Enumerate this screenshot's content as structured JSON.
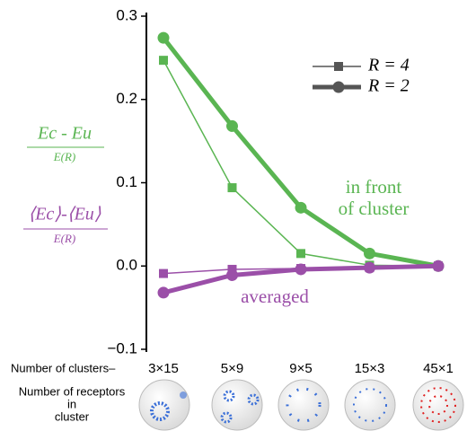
{
  "chart_data": {
    "type": "line",
    "categories": [
      "3×15",
      "5×9",
      "9×5",
      "15×3",
      "45×1"
    ],
    "ylim": [
      -0.1,
      0.3
    ],
    "yticks": [
      {
        "value": -0.1,
        "label": "−0.1"
      },
      {
        "value": 0,
        "label": "0.0"
      },
      0.1,
      0.2,
      0.3
    ],
    "series": [
      {
        "color": "#5ab552",
        "width": 1.5,
        "marker": "square",
        "values": [
          0.247,
          0.094,
          0.015,
          0.001,
          0
        ]
      },
      {
        "color": "#5ab552",
        "width": 5,
        "marker": "circle",
        "values": [
          0.274,
          0.168,
          0.07,
          0.015,
          0
        ]
      },
      {
        "color": "#9b4fa8",
        "width": 1.5,
        "marker": "square",
        "values": [
          -0.009,
          -0.004,
          -0.003,
          -0.002,
          0
        ]
      },
      {
        "color": "#9b4fa8",
        "width": 5,
        "marker": "circle",
        "values": [
          -0.032,
          -0.011,
          -0.004,
          -0.002,
          0
        ]
      }
    ],
    "legend": [
      {
        "label": "R = 4",
        "width": 1.5,
        "marker": "square"
      },
      {
        "label": "R = 2",
        "width": 5,
        "marker": "circle"
      }
    ],
    "legend_color": "#555555",
    "y_label_green": {
      "numerator": "Ec - Eu",
      "denominator": "E(R)"
    },
    "y_label_purple": {
      "numerator": "⟨Ec⟩-⟨Eu⟩",
      "denominator": "E(R)"
    },
    "annotations": {
      "front": [
        "in front",
        "of cluster"
      ],
      "averaged": "averaged"
    },
    "x_label": "Number of clusters–",
    "x_label2": [
      "Number of receptors",
      "in",
      "cluster"
    ]
  }
}
